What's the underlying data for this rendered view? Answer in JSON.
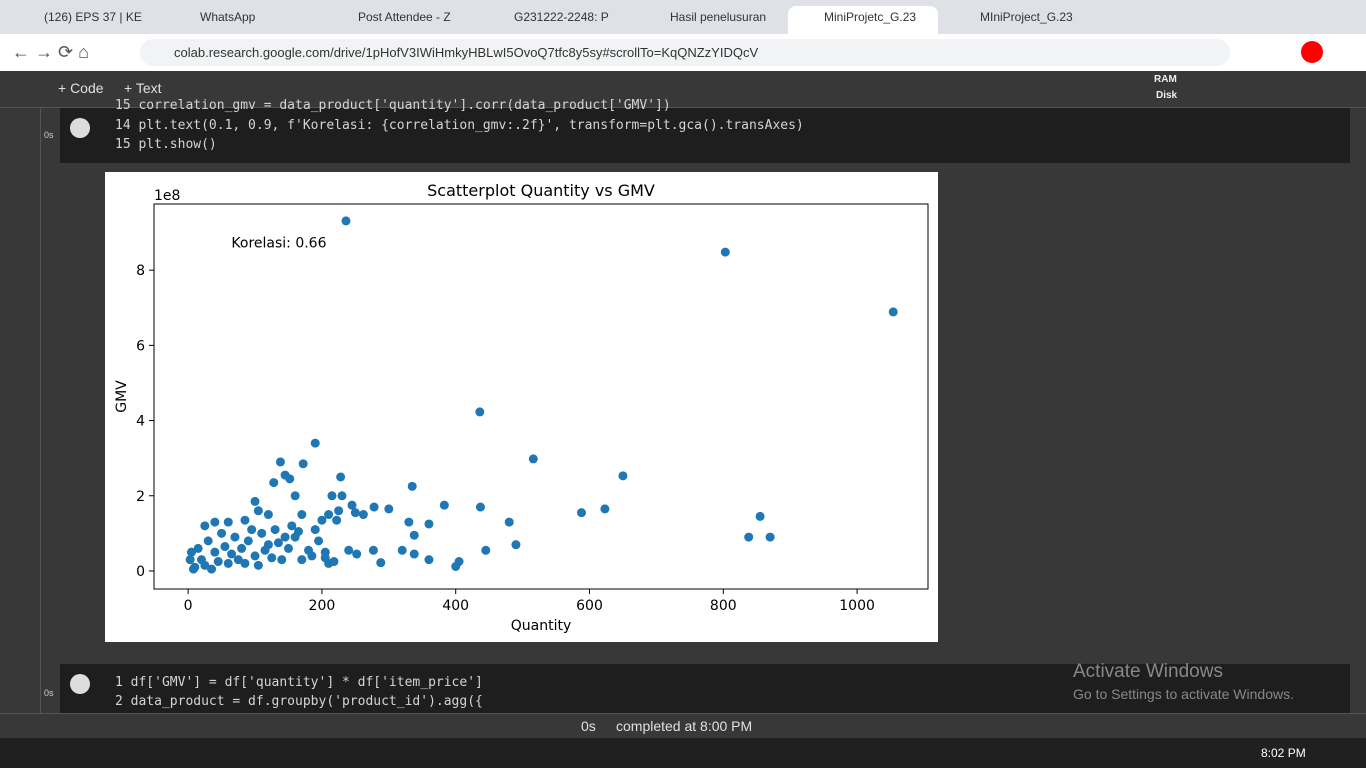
{
  "browser": {
    "tabs": [
      "(126) EPS 37 | KE",
      "WhatsApp",
      "Post Attendee - Z",
      "G231222-2248: P",
      "Hasil penelusuran",
      "MiniProjetc_G.23",
      "MIniProject_G.23"
    ],
    "url": "colab.research.google.com/drive/1pHofV3IWiHmkyHBLwI5OvoQ7tfc8y5sy#scrollTo=KqQNZzYIDQcV"
  },
  "colab": {
    "toolbar": [
      "+ Code",
      "+ Text"
    ],
    "resources": [
      "RAM",
      "Disk"
    ],
    "cell1": {
      "time": "0s",
      "lines": [
        "15 correlation_gmv = data_product['quantity'].corr(data_product['GMV'])",
        "14 plt.text(0.1, 0.9, f'Korelasi: {correlation_gmv:.2f}', transform=plt.gca().transAxes)",
        "15 plt.show()"
      ]
    },
    "cell2": {
      "time": "0s",
      "lines": [
        "1 df['GMV'] = df['quantity'] * df['item_price']",
        "2 data_product = df.groupby('product_id').agg({"
      ]
    },
    "status": {
      "time": "0s",
      "text": "completed at 8:00 PM"
    },
    "watermark": [
      "Activate Windows",
      "Go to Settings to activate Windows."
    ]
  },
  "taskbar": {
    "time": "8:02 PM"
  },
  "chart_data": {
    "type": "scatter",
    "title": "Scatterplot Quantity vs GMV",
    "x_label": "Quantity",
    "y_label": "GMV",
    "y_offset_label": "1e8",
    "annotation": "Korelasi: 0.66",
    "color": "#1f77b4",
    "xlim": [
      -51,
      1106
    ],
    "ylim": [
      -0.48,
      9.76
    ],
    "xticks": [
      0,
      200,
      400,
      600,
      800,
      1000
    ],
    "yticks": [
      0,
      2,
      4,
      6,
      8
    ],
    "x": [
      236,
      803,
      1054,
      436,
      516,
      650,
      588,
      623,
      855,
      838,
      870,
      490,
      480,
      437,
      445,
      405,
      400,
      360,
      360,
      330,
      335,
      383,
      338,
      338,
      288,
      277,
      278,
      250,
      240,
      252,
      228,
      230,
      215,
      222,
      190,
      172,
      138,
      145,
      152,
      128,
      160,
      100,
      105,
      120,
      85,
      60,
      40,
      25,
      170,
      200,
      210,
      205,
      210,
      180,
      160,
      140,
      120,
      100,
      80,
      60,
      40,
      20,
      10,
      5,
      30,
      50,
      70,
      90,
      110,
      130,
      150,
      170,
      190,
      15,
      25,
      45,
      65,
      85,
      105,
      125,
      145,
      8,
      3,
      35,
      55,
      75,
      95,
      115,
      135,
      155,
      165,
      185,
      195,
      225,
      245,
      262,
      300,
      320,
      205,
      218
    ],
    "y": [
      9.31,
      8.48,
      6.89,
      4.23,
      2.98,
      2.53,
      1.55,
      1.65,
      1.45,
      0.9,
      0.9,
      0.7,
      1.3,
      1.7,
      0.55,
      0.25,
      0.12,
      1.25,
      0.3,
      1.3,
      2.25,
      1.75,
      0.95,
      0.45,
      0.22,
      0.55,
      1.7,
      1.55,
      0.55,
      0.45,
      2.5,
      2.0,
      2.0,
      1.35,
      3.4,
      2.85,
      2.9,
      2.55,
      2.45,
      2.35,
      2.0,
      1.85,
      1.6,
      1.5,
      1.35,
      1.3,
      1.3,
      1.2,
      1.5,
      1.35,
      1.5,
      0.5,
      0.2,
      0.55,
      0.9,
      0.3,
      0.7,
      0.4,
      0.6,
      0.2,
      0.5,
      0.3,
      0.1,
      0.5,
      0.8,
      1.0,
      0.9,
      0.8,
      1.0,
      1.1,
      0.6,
      0.3,
      1.1,
      0.6,
      0.15,
      0.25,
      0.45,
      0.2,
      0.15,
      0.35,
      0.9,
      0.05,
      0.3,
      0.05,
      0.65,
      0.3,
      1.1,
      0.55,
      0.75,
      1.2,
      1.05,
      0.4,
      0.8,
      1.6,
      1.75,
      1.5,
      1.65,
      0.55,
      0.35,
      0.25
    ]
  }
}
